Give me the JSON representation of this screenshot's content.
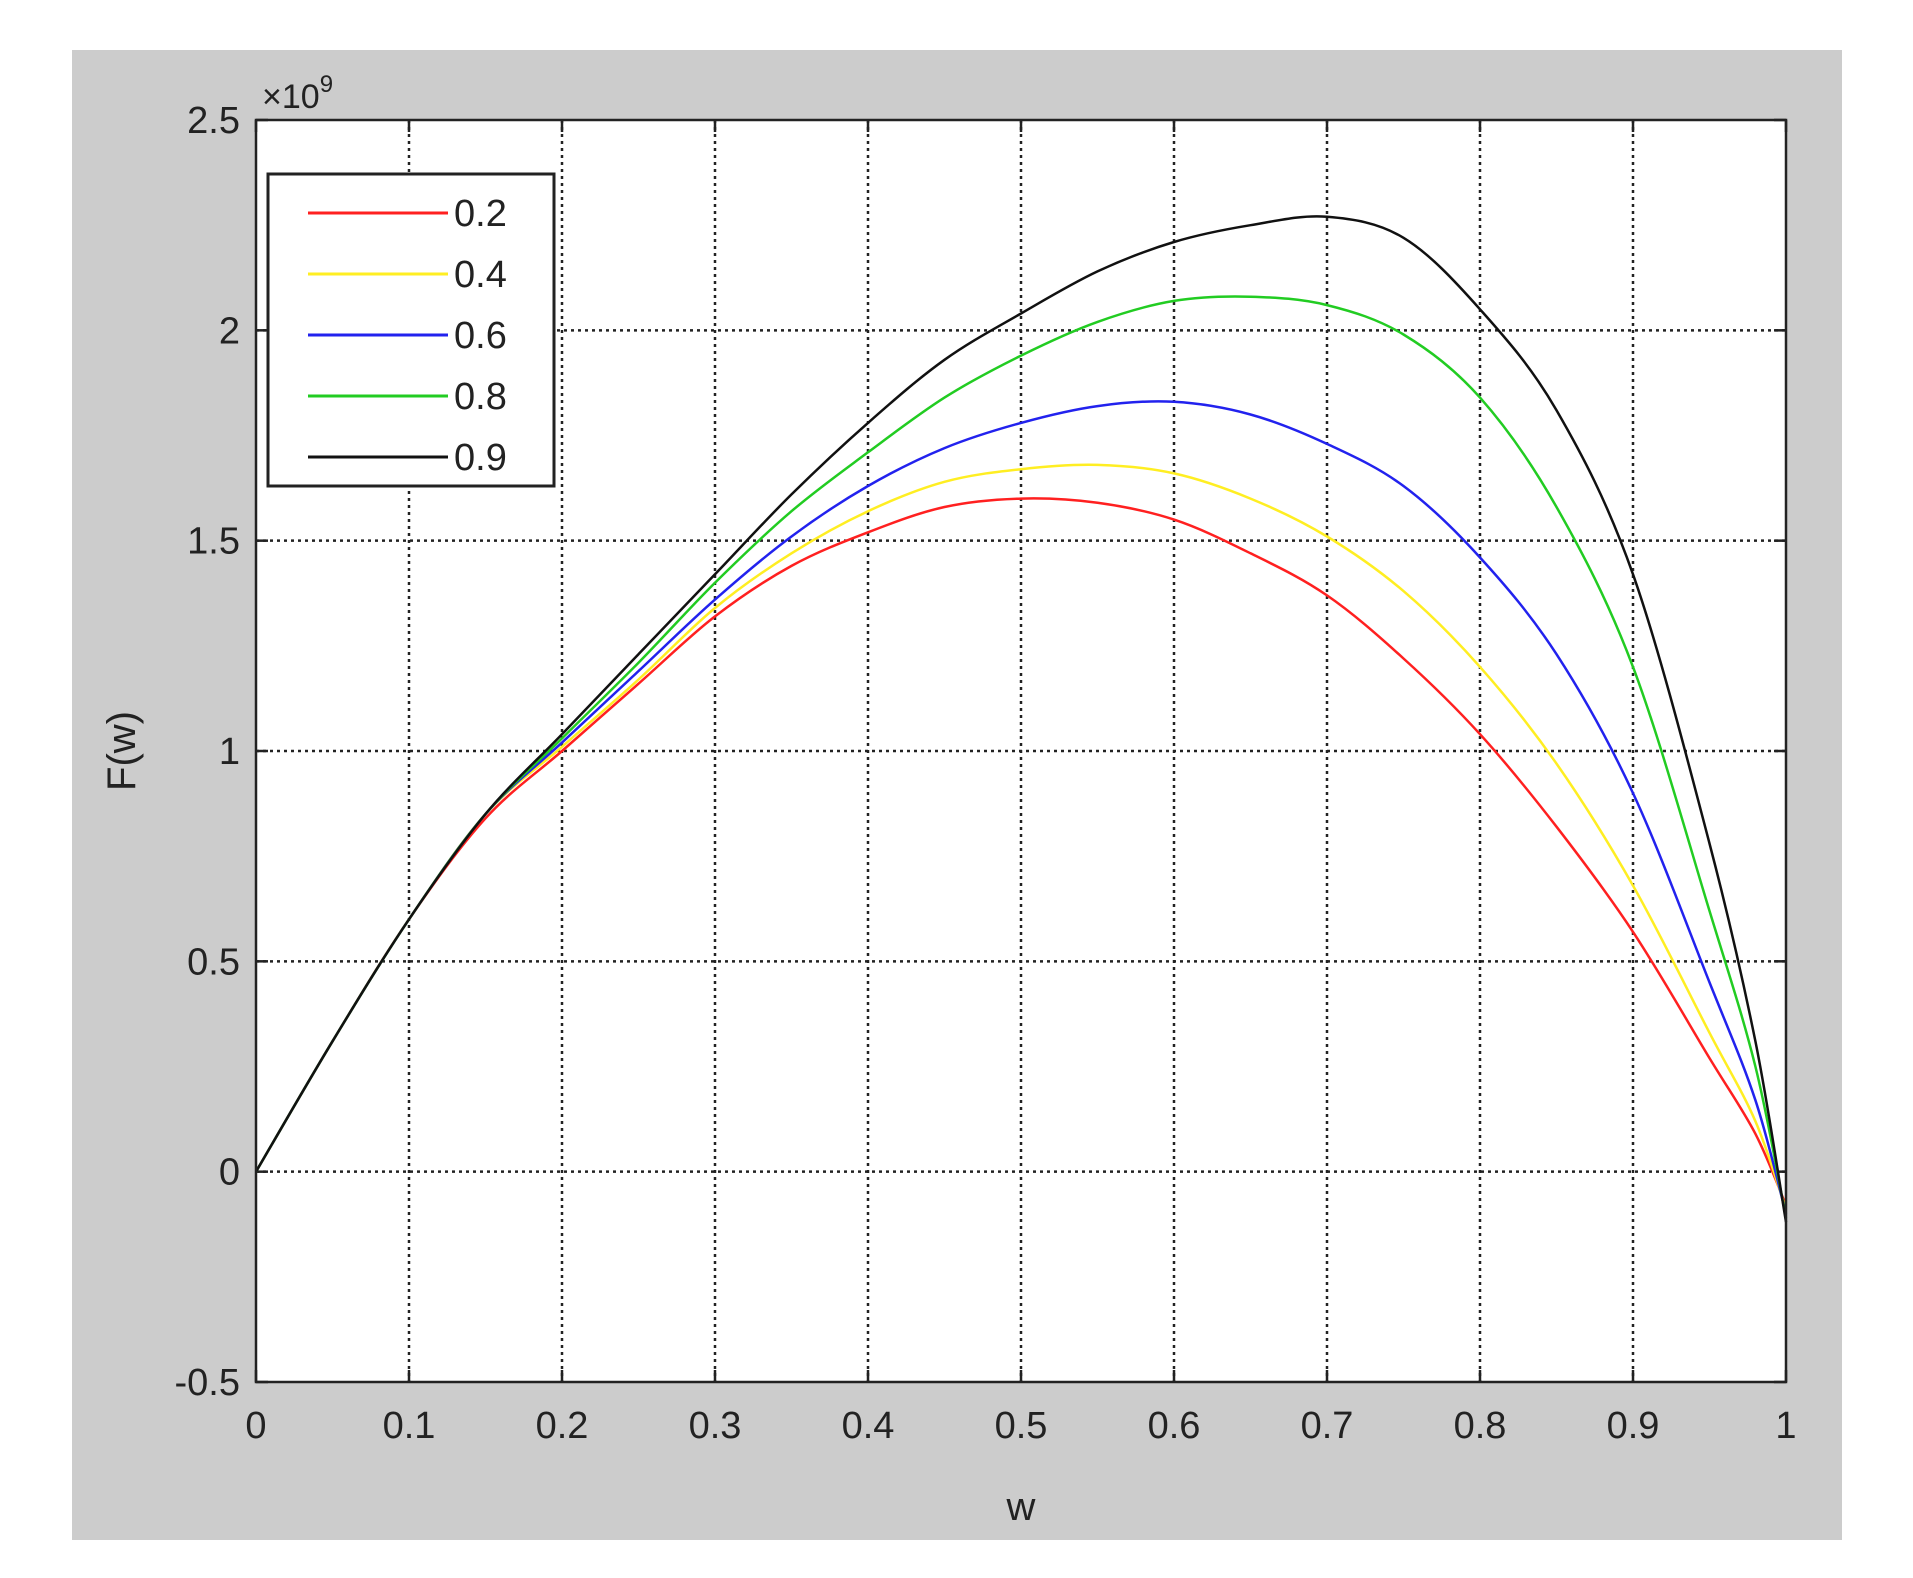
{
  "chart_data": {
    "type": "line",
    "title": "",
    "xlabel": "w",
    "ylabel": "F(w)",
    "y_exponent_label": "×10",
    "y_exponent_power": "9",
    "xlim": [
      0,
      1
    ],
    "ylim": [
      -0.5,
      2.5
    ],
    "y_scale_factor": 1000000000,
    "grid": true,
    "legend_position": "top-left",
    "xticks": [
      "0",
      "0.1",
      "0.2",
      "0.3",
      "0.4",
      "0.5",
      "0.6",
      "0.7",
      "0.8",
      "0.9",
      "1"
    ],
    "yticks": [
      "-0.5",
      "0",
      "0.5",
      "1",
      "1.5",
      "2",
      "2.5"
    ],
    "x": [
      0,
      0.05,
      0.1,
      0.15,
      0.2,
      0.25,
      0.3,
      0.35,
      0.4,
      0.45,
      0.5,
      0.55,
      0.6,
      0.65,
      0.7,
      0.75,
      0.8,
      0.85,
      0.9,
      0.95,
      0.98,
      1.0
    ],
    "series": [
      {
        "name": "0.2",
        "color": "#ff2020",
        "values": [
          0,
          0.31,
          0.6,
          0.84,
          1.0,
          1.16,
          1.32,
          1.44,
          1.52,
          1.58,
          1.6,
          1.59,
          1.55,
          1.47,
          1.37,
          1.22,
          1.04,
          0.82,
          0.57,
          0.27,
          0.09,
          -0.08
        ]
      },
      {
        "name": "0.4",
        "color": "#ffee22",
        "values": [
          0,
          0.31,
          0.6,
          0.85,
          1.01,
          1.17,
          1.34,
          1.47,
          1.57,
          1.64,
          1.67,
          1.68,
          1.66,
          1.6,
          1.51,
          1.38,
          1.2,
          0.97,
          0.68,
          0.33,
          0.12,
          -0.09
        ]
      },
      {
        "name": "0.6",
        "color": "#2222ee",
        "values": [
          0,
          0.31,
          0.6,
          0.85,
          1.02,
          1.19,
          1.36,
          1.51,
          1.63,
          1.72,
          1.78,
          1.82,
          1.83,
          1.8,
          1.73,
          1.63,
          1.46,
          1.23,
          0.9,
          0.45,
          0.17,
          -0.1
        ]
      },
      {
        "name": "0.8",
        "color": "#22cc22",
        "values": [
          0,
          0.31,
          0.6,
          0.85,
          1.03,
          1.21,
          1.4,
          1.57,
          1.71,
          1.84,
          1.94,
          2.02,
          2.07,
          2.08,
          2.06,
          1.99,
          1.84,
          1.58,
          1.2,
          0.62,
          0.25,
          -0.11
        ]
      },
      {
        "name": "0.9",
        "color": "#111111",
        "values": [
          0,
          0.31,
          0.6,
          0.85,
          1.04,
          1.23,
          1.42,
          1.61,
          1.78,
          1.93,
          2.04,
          2.14,
          2.21,
          2.25,
          2.27,
          2.22,
          2.05,
          1.81,
          1.42,
          0.78,
          0.31,
          -0.12
        ]
      }
    ]
  }
}
